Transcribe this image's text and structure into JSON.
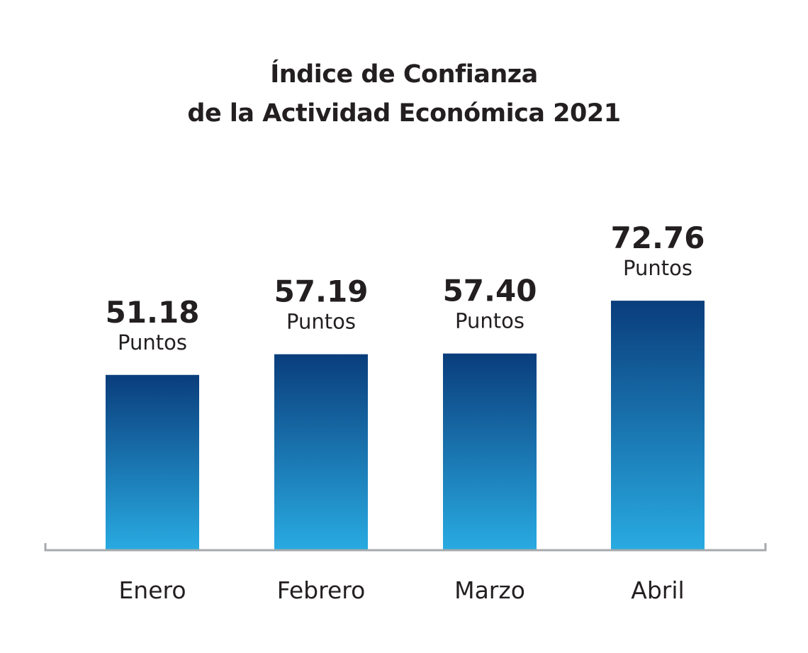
{
  "chart_data": {
    "type": "bar",
    "title": [
      "Índice de Confianza",
      "de la Actividad Económica 2021"
    ],
    "categories": [
      "Enero",
      "Febrero",
      "Marzo",
      "Abril"
    ],
    "values": [
      51.18,
      57.19,
      57.4,
      72.76
    ],
    "data_labels": [
      "51.18",
      "57.19",
      "57.40",
      "72.76"
    ],
    "unit_label": "Puntos",
    "ylim": [
      0,
      80
    ],
    "grid": false,
    "colors": {
      "bar_top": "#0a3d7c",
      "bar_bottom": "#29abe2",
      "axis": "#a7a9ac",
      "text": "#231f20"
    }
  }
}
